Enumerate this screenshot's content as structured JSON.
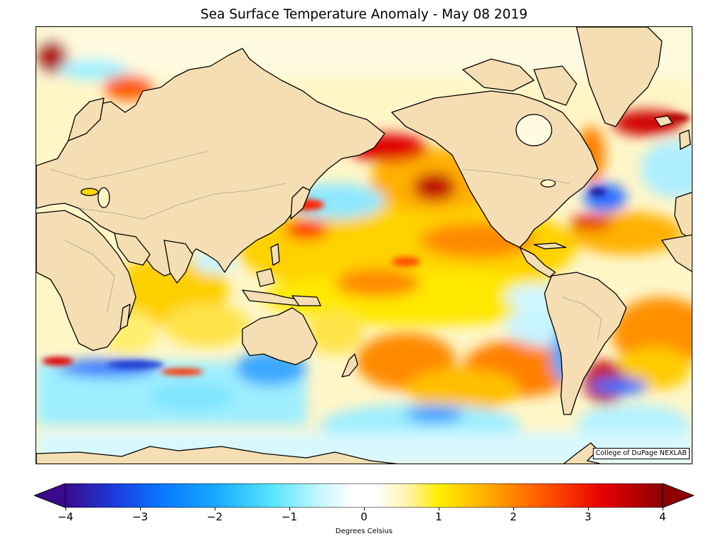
{
  "title": "Sea Surface Temperature Anomaly - May 08 2019",
  "credit": "College of DuPage NEXLAB",
  "colorbar": {
    "label": "Degrees Celsius",
    "ticks": [
      "−4",
      "−3",
      "−2",
      "−1",
      "0",
      "1",
      "2",
      "3",
      "4"
    ],
    "min": -4,
    "max": 4,
    "extend": "both",
    "stops": [
      {
        "v": -4.0,
        "c": "#3a0a8c"
      },
      {
        "v": -3.3,
        "c": "#1a3fe0"
      },
      {
        "v": -2.7,
        "c": "#0a78ff"
      },
      {
        "v": -2.0,
        "c": "#16a8ff"
      },
      {
        "v": -1.2,
        "c": "#5ce6ff"
      },
      {
        "v": -0.6,
        "c": "#c4f6ff"
      },
      {
        "v": -0.15,
        "c": "#ffffff"
      },
      {
        "v": 0.15,
        "c": "#ffffff"
      },
      {
        "v": 0.6,
        "c": "#fff3a8"
      },
      {
        "v": 1.0,
        "c": "#ffee00"
      },
      {
        "v": 1.5,
        "c": "#ffbd00"
      },
      {
        "v": 2.0,
        "c": "#ff8400"
      },
      {
        "v": 2.6,
        "c": "#ff4200"
      },
      {
        "v": 3.2,
        "c": "#e50000"
      },
      {
        "v": 4.0,
        "c": "#8c0000"
      }
    ]
  },
  "colors": {
    "land": "#f5deb3",
    "coast": "#000000",
    "border": "#888888"
  }
}
